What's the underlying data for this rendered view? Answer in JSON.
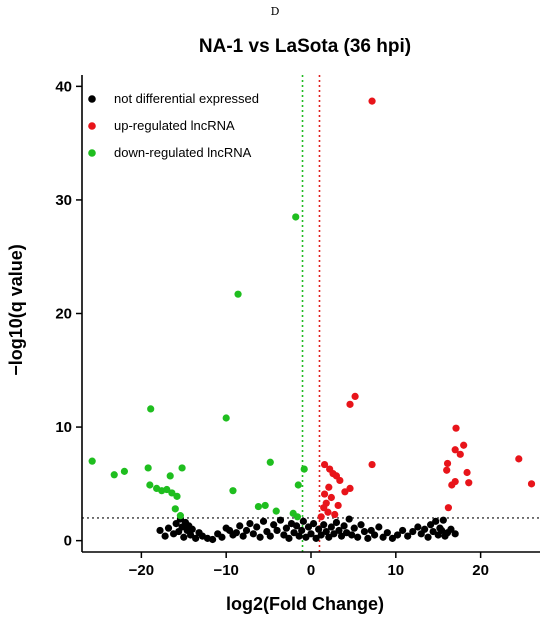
{
  "panel_letter": "D",
  "chart_data": {
    "type": "scatter",
    "title": "NA-1 vs LaSota (36 hpi)",
    "xlabel": "log2(Fold Change)",
    "ylabel": "−log10(q value)",
    "xlim": [
      -27,
      27
    ],
    "ylim": [
      -1,
      41
    ],
    "xticks": [
      -20,
      -10,
      0,
      10,
      20
    ],
    "yticks": [
      0,
      10,
      20,
      30,
      40
    ],
    "xtick_labels": [
      "−20",
      "−10",
      "0",
      "10",
      "20"
    ],
    "ytick_labels": [
      "0",
      "10",
      "20",
      "30",
      "40"
    ],
    "legend_position": "top-left",
    "grid": false,
    "reference_lines": [
      {
        "orientation": "vertical",
        "value": -1,
        "color": "#22bb22",
        "style": "dotted"
      },
      {
        "orientation": "vertical",
        "value": 1,
        "color": "#e02020",
        "style": "dotted"
      },
      {
        "orientation": "horizontal",
        "value": 2,
        "color": "#555555",
        "style": "dotted"
      }
    ],
    "series": [
      {
        "name": "not differential expressed",
        "color": "#000000",
        "points": [
          [
            -17.8,
            0.9
          ],
          [
            -17.2,
            0.4
          ],
          [
            -16.8,
            1.1
          ],
          [
            -16.2,
            0.6
          ],
          [
            -15.9,
            1.5
          ],
          [
            -15.6,
            0.8
          ],
          [
            -15.4,
            1.9
          ],
          [
            -15.2,
            1.2
          ],
          [
            -15.0,
            0.3
          ],
          [
            -14.8,
            1.6
          ],
          [
            -14.6,
            0.9
          ],
          [
            -14.4,
            1.3
          ],
          [
            -14.2,
            0.5
          ],
          [
            -14.0,
            1.0
          ],
          [
            -13.6,
            0.2
          ],
          [
            -13.2,
            0.7
          ],
          [
            -12.8,
            0.4
          ],
          [
            -12.2,
            0.2
          ],
          [
            -11.6,
            0.1
          ],
          [
            -11.0,
            0.6
          ],
          [
            -10.5,
            0.3
          ],
          [
            -10.0,
            1.1
          ],
          [
            -9.6,
            0.9
          ],
          [
            -9.2,
            0.5
          ],
          [
            -8.8,
            0.7
          ],
          [
            -8.4,
            1.3
          ],
          [
            -8.0,
            0.4
          ],
          [
            -7.6,
            0.9
          ],
          [
            -7.2,
            1.5
          ],
          [
            -6.8,
            0.6
          ],
          [
            -6.4,
            1.2
          ],
          [
            -6.0,
            0.3
          ],
          [
            -5.6,
            1.7
          ],
          [
            -5.2,
            0.8
          ],
          [
            -4.8,
            0.4
          ],
          [
            -4.4,
            1.4
          ],
          [
            -4.0,
            0.9
          ],
          [
            -3.6,
            1.8
          ],
          [
            -3.2,
            0.5
          ],
          [
            -2.9,
            1.1
          ],
          [
            -2.6,
            0.2
          ],
          [
            -2.3,
            1.5
          ],
          [
            -2.0,
            0.7
          ],
          [
            -1.7,
            1.3
          ],
          [
            -1.4,
            0.4
          ],
          [
            -1.1,
            0.9
          ],
          [
            -0.9,
            1.7
          ],
          [
            -0.6,
            0.3
          ],
          [
            -0.3,
            1.2
          ],
          [
            0.0,
            0.6
          ],
          [
            0.3,
            1.5
          ],
          [
            0.6,
            0.2
          ],
          [
            0.9,
            1.0
          ],
          [
            1.2,
            0.5
          ],
          [
            1.5,
            1.4
          ],
          [
            1.8,
            0.8
          ],
          [
            2.1,
            0.3
          ],
          [
            2.4,
            1.2
          ],
          [
            2.7,
            0.6
          ],
          [
            3.0,
            1.6
          ],
          [
            3.3,
            0.9
          ],
          [
            3.6,
            0.4
          ],
          [
            3.9,
            1.3
          ],
          [
            4.2,
            0.7
          ],
          [
            4.5,
            1.9
          ],
          [
            4.8,
            0.5
          ],
          [
            5.1,
            1.1
          ],
          [
            5.5,
            0.3
          ],
          [
            5.9,
            1.4
          ],
          [
            6.3,
            0.8
          ],
          [
            6.7,
            0.2
          ],
          [
            7.1,
            0.9
          ],
          [
            7.5,
            0.5
          ],
          [
            8.0,
            1.2
          ],
          [
            8.5,
            0.3
          ],
          [
            9.0,
            0.7
          ],
          [
            9.6,
            0.2
          ],
          [
            10.2,
            0.5
          ],
          [
            10.8,
            0.9
          ],
          [
            11.4,
            0.4
          ],
          [
            12.0,
            0.8
          ],
          [
            12.6,
            1.2
          ],
          [
            13.0,
            0.6
          ],
          [
            13.4,
            1.0
          ],
          [
            13.8,
            0.3
          ],
          [
            14.1,
            1.4
          ],
          [
            14.4,
            0.8
          ],
          [
            14.7,
            1.7
          ],
          [
            15.0,
            0.5
          ],
          [
            15.2,
            1.1
          ],
          [
            15.4,
            0.9
          ],
          [
            15.6,
            1.8
          ],
          [
            15.8,
            0.4
          ],
          [
            16.1,
            0.7
          ],
          [
            16.5,
            1.0
          ],
          [
            17.0,
            0.6
          ]
        ]
      },
      {
        "name": "up-regulated lncRNA",
        "color": "#e8141a",
        "points": [
          [
            7.2,
            38.7
          ],
          [
            5.2,
            12.7
          ],
          [
            4.6,
            12.0
          ],
          [
            7.2,
            6.7
          ],
          [
            1.6,
            6.7
          ],
          [
            2.2,
            6.3
          ],
          [
            2.6,
            5.9
          ],
          [
            3.0,
            5.7
          ],
          [
            3.4,
            5.3
          ],
          [
            4.0,
            4.3
          ],
          [
            4.6,
            4.6
          ],
          [
            2.1,
            4.7
          ],
          [
            1.6,
            4.1
          ],
          [
            1.8,
            3.3
          ],
          [
            2.4,
            3.8
          ],
          [
            3.2,
            3.1
          ],
          [
            1.5,
            2.9
          ],
          [
            2.0,
            2.5
          ],
          [
            2.8,
            2.3
          ],
          [
            1.2,
            2.1
          ],
          [
            17.1,
            9.9
          ],
          [
            17.0,
            8.0
          ],
          [
            17.6,
            7.6
          ],
          [
            18.0,
            8.4
          ],
          [
            16.1,
            6.8
          ],
          [
            16.0,
            6.2
          ],
          [
            17.0,
            5.2
          ],
          [
            16.6,
            4.9
          ],
          [
            18.4,
            6.0
          ],
          [
            18.6,
            5.1
          ],
          [
            16.2,
            2.9
          ],
          [
            24.5,
            7.2
          ],
          [
            26.0,
            5.0
          ]
        ]
      },
      {
        "name": "down-regulated lncRNA",
        "color": "#1fbe1f",
        "points": [
          [
            -1.8,
            28.5
          ],
          [
            -8.6,
            21.7
          ],
          [
            -18.9,
            11.6
          ],
          [
            -10.0,
            10.8
          ],
          [
            -25.8,
            7.0
          ],
          [
            -23.2,
            5.8
          ],
          [
            -22.0,
            6.1
          ],
          [
            -19.2,
            6.4
          ],
          [
            -15.2,
            6.4
          ],
          [
            -16.6,
            5.7
          ],
          [
            -19.0,
            4.9
          ],
          [
            -18.2,
            4.6
          ],
          [
            -17.6,
            4.4
          ],
          [
            -17.0,
            4.5
          ],
          [
            -16.4,
            4.2
          ],
          [
            -15.8,
            3.9
          ],
          [
            -16.0,
            2.8
          ],
          [
            -15.4,
            2.2
          ],
          [
            -4.8,
            6.9
          ],
          [
            -0.8,
            6.3
          ],
          [
            -1.5,
            4.9
          ],
          [
            -9.2,
            4.4
          ],
          [
            -5.4,
            3.1
          ],
          [
            -6.2,
            3.0
          ],
          [
            -2.1,
            2.4
          ],
          [
            -1.6,
            2.1
          ],
          [
            -4.1,
            2.6
          ]
        ]
      }
    ]
  }
}
